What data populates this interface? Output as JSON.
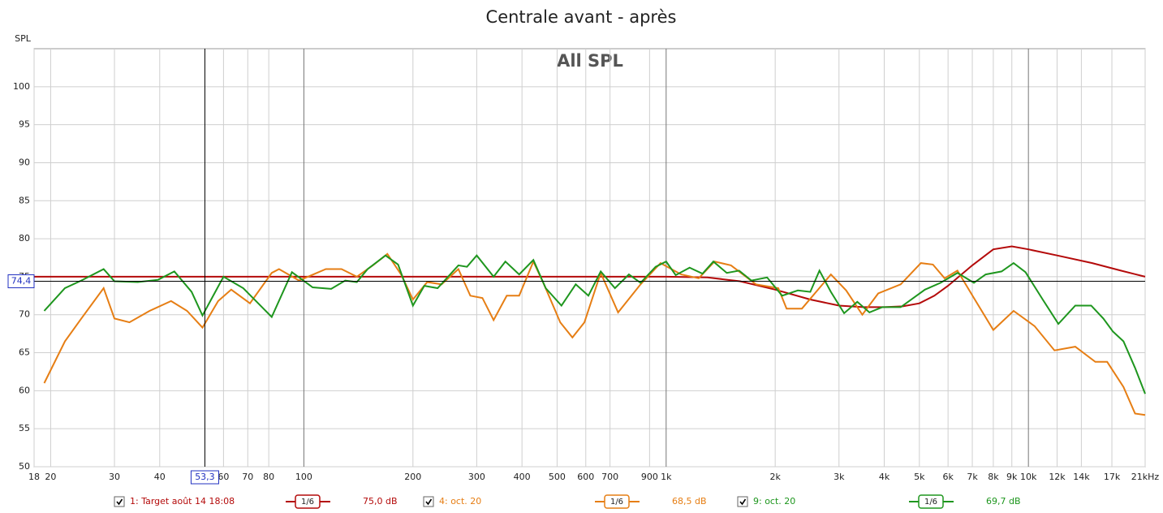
{
  "chart_data": {
    "type": "line",
    "title": "Centrale avant - après",
    "annotation": "All SPL",
    "y_label": "SPL",
    "xscale": "log",
    "grid": true,
    "xlim": [
      18,
      21000
    ],
    "ylim": [
      50,
      105
    ],
    "yticks": [
      50,
      55,
      60,
      65,
      70,
      75,
      80,
      85,
      90,
      95,
      100
    ],
    "xticks": [
      18,
      20,
      30,
      40,
      60,
      70,
      80,
      100,
      200,
      300,
      400,
      500,
      600,
      700,
      900,
      {
        "value": 1000,
        "label": "1k"
      },
      {
        "value": 2000,
        "label": "2k"
      },
      {
        "value": 3000,
        "label": "3k"
      },
      {
        "value": 4000,
        "label": "4k"
      },
      {
        "value": 5000,
        "label": "5k"
      },
      {
        "value": 6000,
        "label": "6k"
      },
      {
        "value": 7000,
        "label": "7k"
      },
      {
        "value": 8000,
        "label": "8k"
      },
      {
        "value": 9000,
        "label": "9k"
      },
      {
        "value": 10000,
        "label": "10k"
      },
      {
        "value": 12000,
        "label": "12k"
      },
      {
        "value": 14000,
        "label": "14k"
      },
      {
        "value": 17000,
        "label": "17k"
      },
      {
        "value": 21000,
        "label": "21kHz"
      }
    ],
    "cursor_x": {
      "value": 53.3,
      "label": "53,3"
    },
    "cursor_y": {
      "value": 74.4,
      "label": "74,4"
    },
    "series": [
      {
        "name": "1: Target août 14 18:08",
        "color": "#b40a0a",
        "smoothing": "1/6",
        "level": "75,0 dB",
        "x": [
          18,
          1000,
          1300,
          1600,
          2000,
          2500,
          3000,
          3500,
          4000,
          4500,
          5000,
          5500,
          6000,
          7000,
          8000,
          9000,
          10000,
          12000,
          15000,
          18000,
          21000
        ],
        "values": [
          75,
          75,
          74.9,
          74.4,
          73.3,
          72,
          71.2,
          71,
          71,
          71.1,
          71.5,
          72.5,
          73.8,
          76.5,
          78.6,
          79,
          78.6,
          77.8,
          76.8,
          75.8,
          75
        ]
      },
      {
        "name": "4: oct. 20",
        "color": "#e67e14",
        "smoothing": "1/6",
        "level": "68,5 dB",
        "x": [
          19.2,
          21.9,
          24.3,
          28,
          30,
          33,
          37.5,
          43,
          47.6,
          52.5,
          58,
          63,
          71,
          81.5,
          85.4,
          97,
          115,
          127,
          140,
          155,
          170,
          186,
          200,
          219,
          240,
          267,
          288,
          311,
          334,
          363,
          393,
          430,
          460,
          510,
          551,
          595,
          660,
          737,
          850,
          965,
          1100,
          1230,
          1360,
          1510,
          1770,
          2040,
          2150,
          2370,
          2850,
          3140,
          3480,
          3850,
          4440,
          5050,
          5450,
          5870,
          6370,
          7070,
          8000,
          9100,
          10400,
          11800,
          13470,
          15300,
          16500,
          18300,
          19700,
          21000
        ],
        "values": [
          61,
          66.5,
          69.5,
          73.5,
          69.5,
          69,
          70.5,
          71.8,
          70.5,
          68.3,
          71.8,
          73.3,
          71.5,
          75.5,
          76,
          74.5,
          76,
          76,
          75,
          76.5,
          78,
          75.2,
          72,
          74.3,
          74,
          76,
          72.5,
          72.2,
          69.3,
          72.5,
          72.5,
          77,
          74,
          69,
          67,
          69,
          75.5,
          70.3,
          74,
          76.8,
          75.3,
          74.8,
          77,
          76.5,
          74,
          73.5,
          70.8,
          70.8,
          75.3,
          73.2,
          70,
          72.8,
          74,
          76.8,
          76.6,
          74.8,
          75.8,
          72.2,
          68,
          70.5,
          68.5,
          65.3,
          65.8,
          63.8,
          63.8,
          60.5,
          57,
          56.8
        ]
      },
      {
        "name": "9: oct. 20",
        "color": "#1e961e",
        "smoothing": "1/6",
        "level": "69,7 dB",
        "x": [
          19.2,
          21.9,
          24.3,
          28,
          30,
          34.8,
          39.6,
          43.9,
          49,
          52.5,
          60,
          68,
          81.5,
          92.7,
          105.7,
          119,
          130,
          140,
          150,
          168,
          182,
          200,
          215,
          234,
          267,
          282,
          300,
          334,
          360,
          393,
          430,
          465,
          514,
          563,
          610,
          660,
          722,
          789,
          850,
          935,
          1000,
          1063,
          1161,
          1260,
          1350,
          1470,
          1590,
          1720,
          1900,
          2090,
          2310,
          2500,
          2650,
          2850,
          3100,
          3370,
          3640,
          3950,
          4440,
          5180,
          5720,
          6370,
          7070,
          7620,
          8430,
          9100,
          9820,
          10950,
          12100,
          13470,
          14900,
          16100,
          17100,
          18300,
          19700,
          21000
        ],
        "values": [
          70.5,
          73.5,
          74.5,
          76,
          74.4,
          74.3,
          74.6,
          75.7,
          73,
          69.9,
          75,
          73.5,
          69.7,
          75.6,
          73.6,
          73.4,
          74.5,
          74.3,
          76,
          77.8,
          76.6,
          71.2,
          73.8,
          73.5,
          76.5,
          76.3,
          77.8,
          75,
          77,
          75.3,
          77.2,
          73.5,
          71.2,
          74,
          72.5,
          75.7,
          73.5,
          75.3,
          74.2,
          76.3,
          77,
          75.2,
          76.2,
          75.4,
          77,
          75.5,
          75.8,
          74.5,
          74.9,
          72.5,
          73.2,
          73,
          75.8,
          73,
          70.2,
          71.7,
          70.3,
          71,
          71,
          73.3,
          74.2,
          75.5,
          74.2,
          75.3,
          75.7,
          76.8,
          75.6,
          72,
          68.8,
          71.2,
          71.2,
          69.5,
          67.8,
          66.5,
          63,
          59.6
        ]
      }
    ]
  }
}
